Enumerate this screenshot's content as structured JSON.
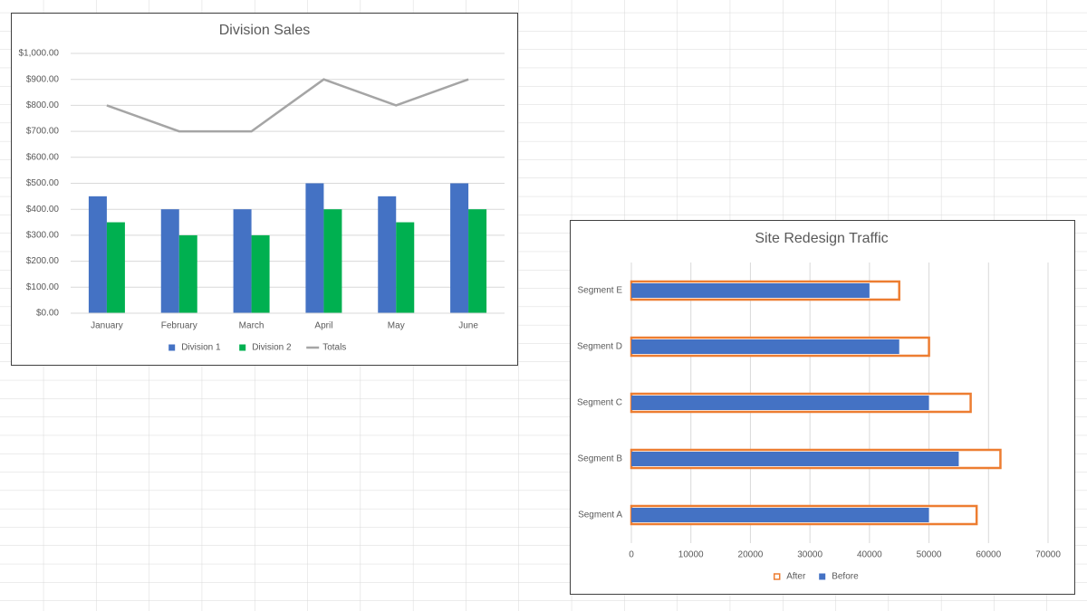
{
  "chart_data": [
    {
      "type": "combo",
      "title": "Division Sales",
      "categories": [
        "January",
        "February",
        "March",
        "April",
        "May",
        "June"
      ],
      "series": [
        {
          "name": "Division 1",
          "type": "bar",
          "color": "#4472c4",
          "values": [
            450,
            400,
            400,
            500,
            450,
            500
          ]
        },
        {
          "name": "Division 2",
          "type": "bar",
          "color": "#00b050",
          "values": [
            350,
            300,
            300,
            400,
            350,
            400
          ]
        },
        {
          "name": "Totals",
          "type": "line",
          "color": "#a5a5a5",
          "values": [
            800,
            700,
            700,
            900,
            800,
            900
          ]
        }
      ],
      "ylim": [
        0,
        1000
      ],
      "yticks": [
        {
          "value": 0,
          "label": "$0.00"
        },
        {
          "value": 100,
          "label": "$100.00"
        },
        {
          "value": 200,
          "label": "$200.00"
        },
        {
          "value": 300,
          "label": "$300.00"
        },
        {
          "value": 400,
          "label": "$400.00"
        },
        {
          "value": 500,
          "label": "$500.00"
        },
        {
          "value": 600,
          "label": "$600.00"
        },
        {
          "value": 700,
          "label": "$700.00"
        },
        {
          "value": 800,
          "label": "$800.00"
        },
        {
          "value": 900,
          "label": "$900.00"
        },
        {
          "value": 1000,
          "label": "$1,000.00"
        }
      ],
      "grid": true,
      "legend": "bottom"
    },
    {
      "type": "hbar",
      "title": "Site Redesign Traffic",
      "categories": [
        "Segment A",
        "Segment B",
        "Segment C",
        "Segment D",
        "Segment E"
      ],
      "series": [
        {
          "name": "After",
          "style": "outline",
          "color": "#ed7d31",
          "values": [
            58000,
            62000,
            57000,
            50000,
            45000
          ]
        },
        {
          "name": "Before",
          "style": "fill",
          "color": "#4472c4",
          "values": [
            50000,
            55000,
            50000,
            45000,
            40000
          ]
        }
      ],
      "xlim": [
        0,
        70000
      ],
      "xticks": [
        0,
        10000,
        20000,
        30000,
        40000,
        50000,
        60000,
        70000
      ],
      "grid": true,
      "legend": "bottom"
    }
  ]
}
